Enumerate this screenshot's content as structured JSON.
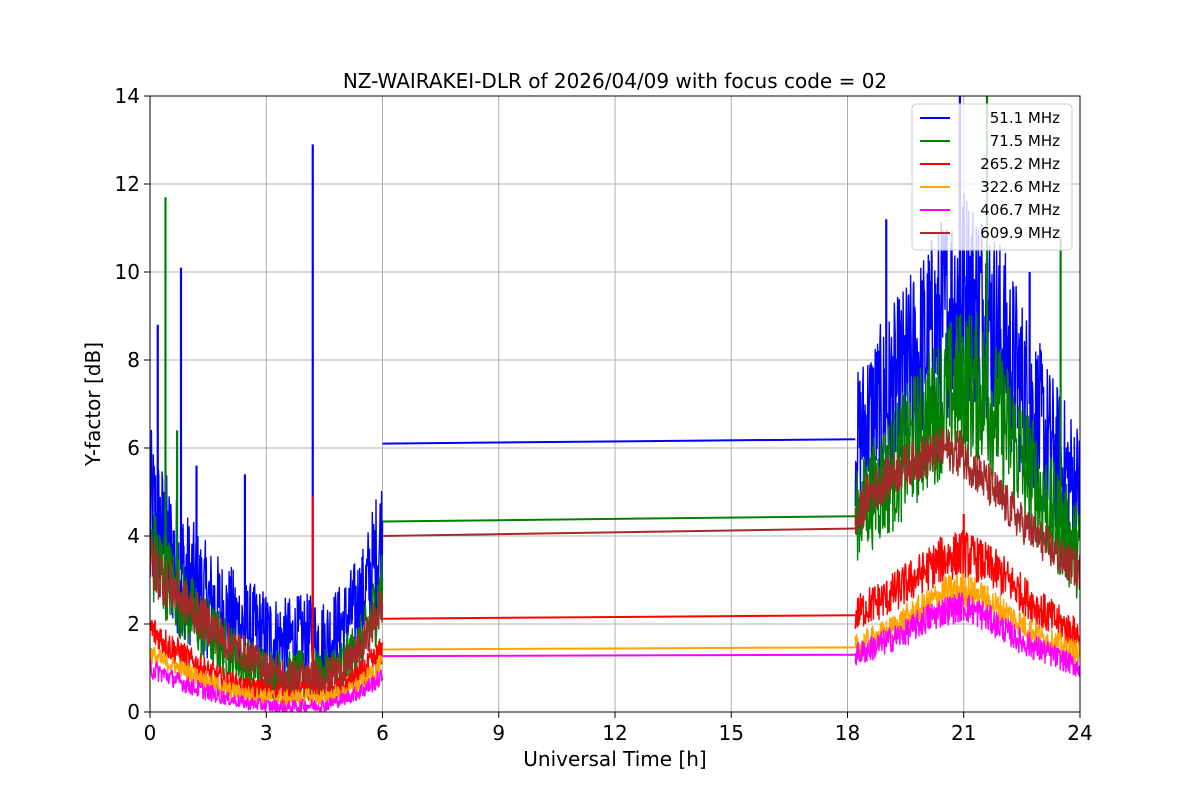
{
  "chart_data": {
    "type": "line",
    "title": "NZ-WAIRAKEI-DLR of 2026/04/09 with focus code = 02",
    "xlabel": "Universal Time [h]",
    "ylabel": "Y-factor [dB]",
    "xlim": [
      0,
      24
    ],
    "ylim": [
      0,
      14
    ],
    "xticks": [
      0,
      3,
      6,
      9,
      12,
      15,
      18,
      21,
      24
    ],
    "yticks": [
      0,
      2,
      4,
      6,
      8,
      10,
      12,
      14
    ],
    "grid": true,
    "legend_position": "top-right",
    "gap": [
      6.0,
      18.2
    ],
    "series": [
      {
        "name": " 51.1 MHz",
        "color": "#0000ff",
        "x": [
          0,
          0.5,
          1,
          1.5,
          2,
          2.5,
          3,
          3.5,
          4,
          4.5,
          5,
          5.5,
          6,
          18.2,
          18.5,
          19,
          19.5,
          20,
          20.5,
          21,
          21.5,
          22,
          22.5,
          23,
          23.5,
          24
        ],
        "y": [
          4.5,
          3.6,
          3.0,
          2.5,
          2.2,
          1.9,
          1.7,
          1.6,
          1.7,
          1.6,
          2.0,
          2.6,
          4.0,
          6.1,
          6.6,
          7.0,
          7.6,
          8.3,
          9.0,
          9.6,
          9.2,
          8.4,
          7.4,
          6.4,
          5.6,
          5.0
        ],
        "spread": [
          2.0,
          1.7,
          1.5,
          1.3,
          1.2,
          1.1,
          1.1,
          1.0,
          1.0,
          1.0,
          1.0,
          1.2,
          1.6,
          1.5,
          1.8,
          2.0,
          2.2,
          2.3,
          2.4,
          2.5,
          2.4,
          2.3,
          2.1,
          1.9,
          1.7,
          1.6
        ],
        "spikes": [
          [
            0.2,
            8.8
          ],
          [
            0.8,
            10.1
          ],
          [
            1.2,
            5.6
          ],
          [
            2.45,
            5.4
          ],
          [
            4.2,
            12.9
          ],
          [
            20.9,
            14.0
          ],
          [
            19.0,
            11.2
          ],
          [
            22.7,
            10.0
          ]
        ],
        "bridge": [
          [
            6.0,
            6.1
          ],
          [
            18.2,
            6.2
          ]
        ]
      },
      {
        "name": " 71.5 MHz",
        "color": "#008000",
        "x": [
          0,
          0.5,
          1,
          1.5,
          2,
          2.5,
          3,
          3.5,
          4,
          4.5,
          5,
          5.5,
          6,
          18.2,
          18.5,
          19,
          19.5,
          20,
          20.5,
          21,
          21.5,
          22,
          22.5,
          23,
          23.5,
          24
        ],
        "y": [
          3.6,
          3.0,
          2.3,
          1.8,
          1.4,
          1.1,
          0.9,
          0.8,
          0.8,
          0.8,
          1.1,
          1.6,
          2.8,
          4.4,
          4.8,
          5.3,
          5.9,
          6.5,
          7.1,
          7.5,
          7.3,
          6.6,
          5.8,
          4.9,
          4.2,
          3.6
        ],
        "spread": [
          1.2,
          1.0,
          0.9,
          0.8,
          0.7,
          0.6,
          0.6,
          0.6,
          0.6,
          0.6,
          0.6,
          0.7,
          1.0,
          1.0,
          1.2,
          1.4,
          1.5,
          1.6,
          1.7,
          1.8,
          1.7,
          1.6,
          1.5,
          1.3,
          1.2,
          1.1
        ],
        "spikes": [
          [
            0.4,
            11.7
          ],
          [
            0.7,
            6.4
          ],
          [
            21.6,
            14.0
          ],
          [
            23.5,
            10.8
          ]
        ],
        "bridge": [
          [
            6.0,
            4.33
          ],
          [
            18.2,
            4.45
          ]
        ]
      },
      {
        "name": "265.2 MHz",
        "color": "#ff0000",
        "x": [
          0,
          0.5,
          1,
          1.5,
          2,
          2.5,
          3,
          3.5,
          4,
          4.5,
          5,
          5.5,
          6,
          18.2,
          18.5,
          19,
          19.5,
          20,
          20.5,
          21,
          21.5,
          22,
          22.5,
          23,
          23.5,
          24
        ],
        "y": [
          1.9,
          1.5,
          1.2,
          0.9,
          0.7,
          0.55,
          0.5,
          0.45,
          0.5,
          0.5,
          0.6,
          0.9,
          1.4,
          2.2,
          2.4,
          2.6,
          2.9,
          3.2,
          3.5,
          3.6,
          3.4,
          3.1,
          2.7,
          2.3,
          2.0,
          1.7
        ],
        "spread": [
          0.4,
          0.35,
          0.3,
          0.3,
          0.25,
          0.25,
          0.25,
          0.25,
          0.25,
          0.25,
          0.25,
          0.3,
          0.35,
          0.4,
          0.45,
          0.45,
          0.5,
          0.5,
          0.55,
          0.55,
          0.5,
          0.5,
          0.45,
          0.45,
          0.4,
          0.4
        ],
        "spikes": [
          [
            4.2,
            4.9
          ],
          [
            21.0,
            4.5
          ]
        ],
        "bridge": [
          [
            6.0,
            2.12
          ],
          [
            18.2,
            2.2
          ]
        ]
      },
      {
        "name": "322.6 MHz",
        "color": "#ffa500",
        "x": [
          0,
          0.5,
          1,
          1.5,
          2,
          2.5,
          3,
          3.5,
          4,
          4.5,
          5,
          5.5,
          6,
          18.2,
          18.5,
          19,
          19.5,
          20,
          20.5,
          21,
          21.5,
          22,
          22.5,
          23,
          23.5,
          24
        ],
        "y": [
          1.3,
          1.1,
          0.9,
          0.7,
          0.5,
          0.4,
          0.35,
          0.3,
          0.35,
          0.35,
          0.4,
          0.7,
          1.1,
          1.45,
          1.6,
          1.8,
          2.1,
          2.4,
          2.7,
          2.8,
          2.6,
          2.3,
          2.0,
          1.7,
          1.5,
          1.3
        ],
        "spread": [
          0.25,
          0.2,
          0.2,
          0.2,
          0.2,
          0.2,
          0.2,
          0.2,
          0.2,
          0.2,
          0.2,
          0.2,
          0.25,
          0.3,
          0.3,
          0.3,
          0.35,
          0.35,
          0.4,
          0.4,
          0.35,
          0.35,
          0.3,
          0.3,
          0.3,
          0.3
        ],
        "spikes": [],
        "bridge": [
          [
            6.0,
            1.42
          ],
          [
            18.2,
            1.47
          ]
        ]
      },
      {
        "name": "406.7 MHz",
        "color": "#ff00ff",
        "x": [
          0,
          0.5,
          1,
          1.5,
          2,
          2.5,
          3,
          3.5,
          4,
          4.5,
          5,
          5.5,
          6,
          18.2,
          18.5,
          19,
          19.5,
          20,
          20.5,
          21,
          21.5,
          22,
          22.5,
          23,
          23.5,
          24
        ],
        "y": [
          1.0,
          0.8,
          0.6,
          0.45,
          0.3,
          0.2,
          0.15,
          0.1,
          0.15,
          0.15,
          0.3,
          0.5,
          0.8,
          1.3,
          1.4,
          1.6,
          1.8,
          2.1,
          2.3,
          2.4,
          2.2,
          1.9,
          1.6,
          1.4,
          1.2,
          1.0
        ],
        "spread": [
          0.25,
          0.2,
          0.2,
          0.2,
          0.15,
          0.15,
          0.15,
          0.15,
          0.15,
          0.15,
          0.15,
          0.2,
          0.2,
          0.25,
          0.3,
          0.3,
          0.3,
          0.35,
          0.35,
          0.35,
          0.35,
          0.3,
          0.3,
          0.3,
          0.25,
          0.25
        ],
        "spikes": [],
        "bridge": [
          [
            6.0,
            1.27
          ],
          [
            18.2,
            1.3
          ]
        ]
      },
      {
        "name": "609.9 MHz",
        "color": "#a52a2a",
        "x": [
          0,
          0.5,
          1,
          1.5,
          2,
          2.5,
          3,
          3.5,
          4,
          4.5,
          5,
          5.5,
          6,
          18.2,
          18.5,
          19,
          19.5,
          20,
          20.5,
          21,
          21.5,
          22,
          22.5,
          23,
          23.5,
          24
        ],
        "y": [
          3.4,
          2.9,
          2.4,
          2.0,
          1.6,
          1.3,
          1.0,
          0.8,
          0.8,
          0.8,
          1.0,
          1.5,
          2.5,
          4.2,
          4.9,
          5.3,
          5.6,
          5.8,
          6.0,
          5.8,
          5.3,
          4.8,
          4.3,
          3.9,
          3.5,
          3.2
        ],
        "spread": [
          0.7,
          0.6,
          0.5,
          0.5,
          0.45,
          0.4,
          0.4,
          0.4,
          0.4,
          0.4,
          0.4,
          0.45,
          0.5,
          0.5,
          0.5,
          0.5,
          0.5,
          0.5,
          0.5,
          0.5,
          0.5,
          0.5,
          0.45,
          0.45,
          0.45,
          0.45
        ],
        "spikes": [
          [
            20.9,
            6.4
          ]
        ],
        "bridge": [
          [
            6.0,
            4.0
          ],
          [
            18.2,
            4.17
          ]
        ]
      }
    ]
  }
}
